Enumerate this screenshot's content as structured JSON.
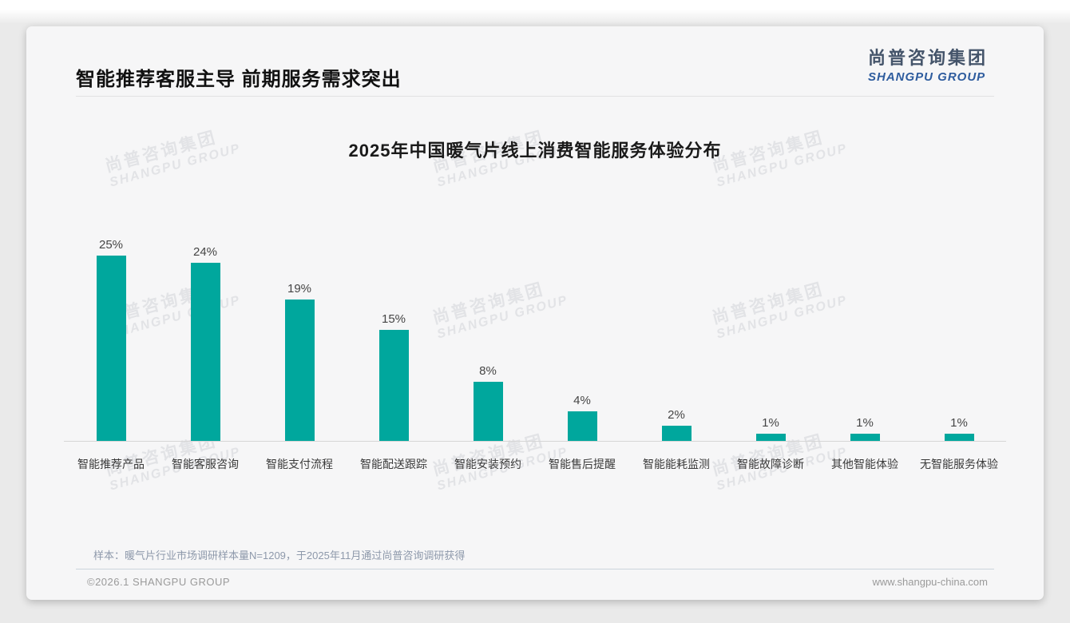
{
  "page": {
    "slide_title": "智能推荐客服主导 前期服务需求突出",
    "logo": {
      "cn": "尚普咨询集团",
      "en": "SHANGPU GROUP"
    },
    "watermark": {
      "cn": "尚普咨询集团",
      "en": "SHANGPU GROUP"
    },
    "footnote": "样本：暖气片行业市场调研样本量N=1209，于2025年11月通过尚普咨询调研获得",
    "footer": {
      "left": "©2026.1 SHANGPU GROUP",
      "right": "www.shangpu-china.com"
    }
  },
  "colors": {
    "bar": "#00a79d",
    "logo_cn": "#44546a",
    "logo_en": "#2e5c9e"
  },
  "chart_data": {
    "type": "bar",
    "title": "2025年中国暖气片线上消费智能服务体验分布",
    "categories": [
      "智能推荐产品",
      "智能客服咨询",
      "智能支付流程",
      "智能配送跟踪",
      "智能安装预约",
      "智能售后提醒",
      "智能能耗监测",
      "智能故障诊断",
      "其他智能体验",
      "无智能服务体验"
    ],
    "values": [
      25,
      24,
      19,
      15,
      8,
      4,
      2,
      1,
      1,
      1
    ],
    "unit": "%",
    "value_labels": true,
    "xlabel": "",
    "ylabel": "",
    "ylim": [
      0,
      25
    ],
    "grid": false,
    "legend": false,
    "bar_color": "#00a79d"
  }
}
